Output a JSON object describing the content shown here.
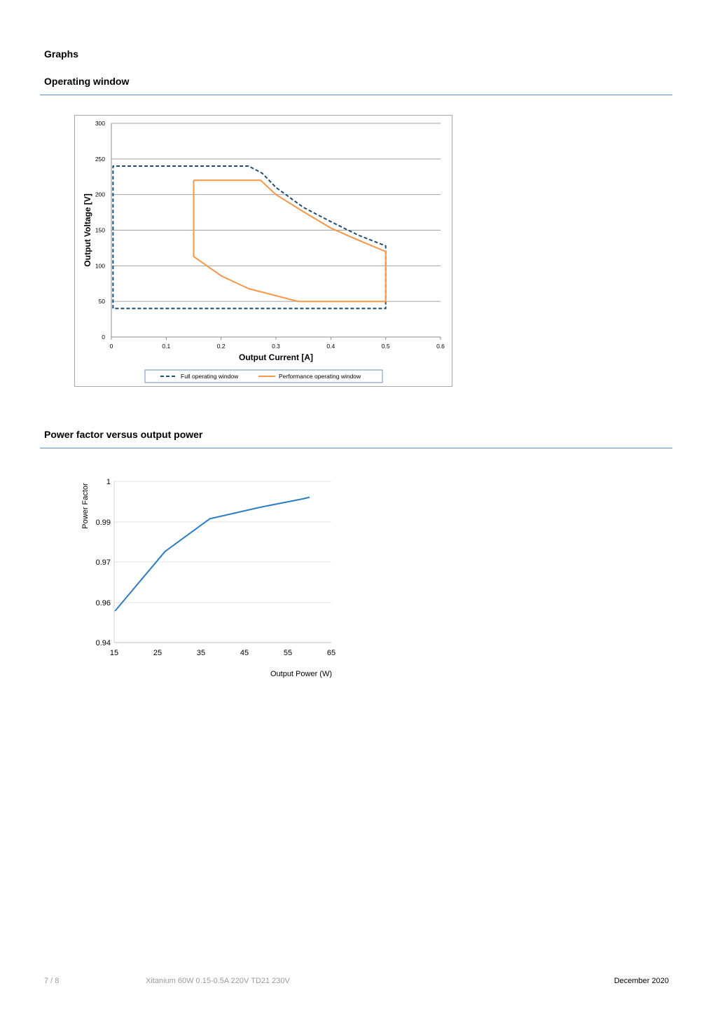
{
  "section_title": "Graphs",
  "operating_window": {
    "heading": "Operating window",
    "chart_data": {
      "type": "line",
      "xlabel": "Output Current [A]",
      "ylabel": "Output Voltage [V]",
      "xlim": [
        0,
        0.6
      ],
      "ylim": [
        0,
        300
      ],
      "x_ticks": [
        "0",
        "0.1",
        "0.2",
        "0.3",
        "0.4",
        "0.5",
        "0.6"
      ],
      "y_ticks": [
        "0",
        "50",
        "100",
        "150",
        "200",
        "250",
        "300"
      ],
      "grid": "horizontal",
      "legend_position": "bottom",
      "series": [
        {
          "name": "Full operating window",
          "style": "dashed",
          "color": "#1f4e79",
          "points": [
            [
              0.003,
              40
            ],
            [
              0.003,
              240
            ],
            [
              0.25,
              240
            ],
            [
              0.275,
              230
            ],
            [
              0.3,
              210
            ],
            [
              0.35,
              182
            ],
            [
              0.4,
              162
            ],
            [
              0.45,
              143
            ],
            [
              0.5,
              128
            ],
            [
              0.5,
              40
            ],
            [
              0.003,
              40
            ]
          ]
        },
        {
          "name": "Performance operating window",
          "style": "solid",
          "color": "#f79646",
          "points": [
            [
              0.15,
              220
            ],
            [
              0.272,
              220
            ],
            [
              0.3,
              200
            ],
            [
              0.35,
              176
            ],
            [
              0.4,
              153
            ],
            [
              0.45,
              136
            ],
            [
              0.5,
              120
            ],
            [
              0.5,
              50
            ],
            [
              0.34,
              50
            ],
            [
              0.3,
              58
            ],
            [
              0.25,
              68
            ],
            [
              0.2,
              86
            ],
            [
              0.15,
              113
            ],
            [
              0.15,
              220
            ]
          ]
        }
      ]
    }
  },
  "power_factor": {
    "heading": "Power factor versus output power",
    "chart_data": {
      "type": "line",
      "xlabel": "Output Power (W)",
      "ylabel": "Power Factor",
      "xlim": [
        15,
        65
      ],
      "x_ticks": [
        "15",
        "25",
        "35",
        "45",
        "55",
        "65"
      ],
      "y_ticks": [
        "0.94",
        "0.96",
        "0.97",
        "0.99",
        "1"
      ],
      "grid": "horizontal",
      "series": [
        {
          "color": "#2e7cc4",
          "points": [
            [
              15.2,
              0.9558
            ],
            [
              26.7,
              0.9752
            ],
            [
              37.0,
              0.9908
            ],
            [
              48.5,
              0.9936
            ],
            [
              58.5,
              0.9957
            ],
            [
              60.0,
              0.9961
            ]
          ]
        }
      ]
    }
  },
  "footer": {
    "page": "7 / 8",
    "product": "Xitanium 60W 0.15-0.5A 220V TD21 230V",
    "date": "December 2020"
  }
}
